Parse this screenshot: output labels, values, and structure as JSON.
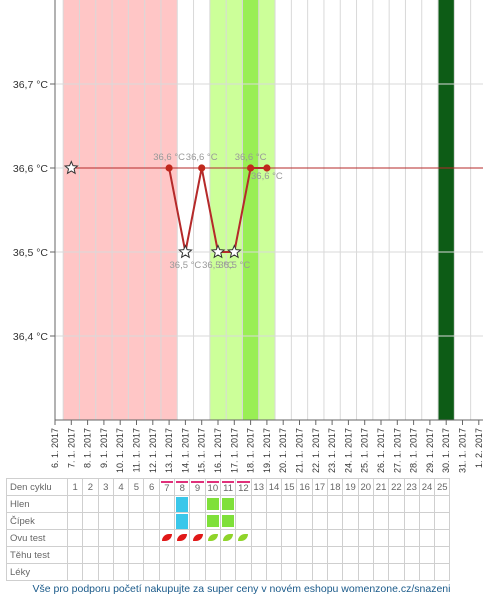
{
  "chart_data": {
    "type": "line",
    "ylabel": "",
    "xlabel": "",
    "ylim": [
      36.3,
      36.8
    ],
    "y_ticks": [
      "36,4 °C",
      "36,5 °C",
      "36,6 °C",
      "36,7 °C"
    ],
    "y_tick_values": [
      36.4,
      36.5,
      36.6,
      36.7
    ],
    "x_dates": [
      "6. 1. 2017",
      "7. 1. 2017",
      "8. 1. 2017",
      "9. 1. 2017",
      "10. 1. 2017",
      "11. 1. 2017",
      "12. 1. 2017",
      "13. 1. 2017",
      "14. 1. 2017",
      "15. 1. 2017",
      "16. 1. 2017",
      "17. 1. 2017",
      "18. 1. 2017",
      "19. 1. 2017",
      "20. 1. 2017",
      "21. 1. 2017",
      "22. 1. 2017",
      "23. 1. 2017",
      "24. 1. 2017",
      "25. 1. 2017",
      "26. 1. 2017",
      "27. 1. 2017",
      "28. 1. 2017",
      "29. 1. 2017",
      "30. 1. 2017",
      "31. 1. 2017",
      "1. 2. 2017"
    ],
    "bands": [
      {
        "from": "6. 1. 2017",
        "to": "12. 1. 2017",
        "color": "#ffc6c6"
      },
      {
        "from": "15. 1. 2017",
        "to": "18. 1. 2017",
        "color": "#ccff99"
      },
      {
        "from": "17. 1. 2017",
        "to": "17. 1. 2017",
        "color": "#99ee55"
      },
      {
        "from": "29. 1. 2017",
        "to": "29. 1. 2017",
        "color": "#0d5c16"
      }
    ],
    "series": [
      {
        "points": [
          {
            "date": "7. 1. 2017",
            "y": 36.6,
            "marker": "star",
            "label": ""
          },
          {
            "date": "13. 1. 2017",
            "y": 36.6,
            "marker": "dot",
            "label": "36,6 °C"
          },
          {
            "date": "14. 1. 2017",
            "y": 36.5,
            "marker": "star",
            "label": "36,5 °C"
          },
          {
            "date": "15. 1. 2017",
            "y": 36.6,
            "marker": "dot",
            "label": "36,6 °C"
          },
          {
            "date": "16. 1. 2017",
            "y": 36.5,
            "marker": "star",
            "label": "36,5 °C"
          },
          {
            "date": "17. 1. 2017",
            "y": 36.5,
            "marker": "star",
            "label": "36,5 °C"
          },
          {
            "date": "18. 1. 2017",
            "y": 36.6,
            "marker": "dot",
            "label": "36,6 °C"
          },
          {
            "date": "19. 1. 2017",
            "y": 36.6,
            "marker": "dot",
            "label": "36,6 °C"
          }
        ],
        "color": "#b52a2a"
      }
    ],
    "coverline": {
      "y": 36.6,
      "color": "#b52a2a"
    },
    "grid": true
  },
  "table": {
    "header_label": "Den cyklu",
    "days": [
      "1",
      "2",
      "3",
      "4",
      "5",
      "6",
      "7",
      "8",
      "9",
      "10",
      "11",
      "12",
      "13",
      "14",
      "15",
      "16",
      "17",
      "18",
      "19",
      "20",
      "21",
      "22",
      "23",
      "24",
      "25"
    ],
    "pink_marked_days": [
      "7",
      "8",
      "9",
      "10",
      "11",
      "12"
    ],
    "rows": [
      {
        "label": "Hlen",
        "marks": {
          "8": "mucus",
          "10": "cervix",
          "11": "cervix"
        }
      },
      {
        "label": "Čípek",
        "marks": {
          "8": "mucus",
          "10": "cervix",
          "11": "cervix"
        }
      },
      {
        "label": "Ovu test",
        "marks": {
          "7": "red",
          "8": "red",
          "9": "red",
          "10": "green",
          "11": "green",
          "12": "green"
        }
      },
      {
        "label": "Těhu test",
        "marks": {}
      },
      {
        "label": "Léky",
        "marks": {}
      }
    ],
    "colors": {
      "red": "#e01818",
      "green": "#8fd42a",
      "mucus": "#3ac7ea",
      "cervix": "#7fe03a"
    }
  },
  "footer": "Vše pro podporu početí nakupujte za super ceny v novém eshopu womenzone.cz/snazeni"
}
